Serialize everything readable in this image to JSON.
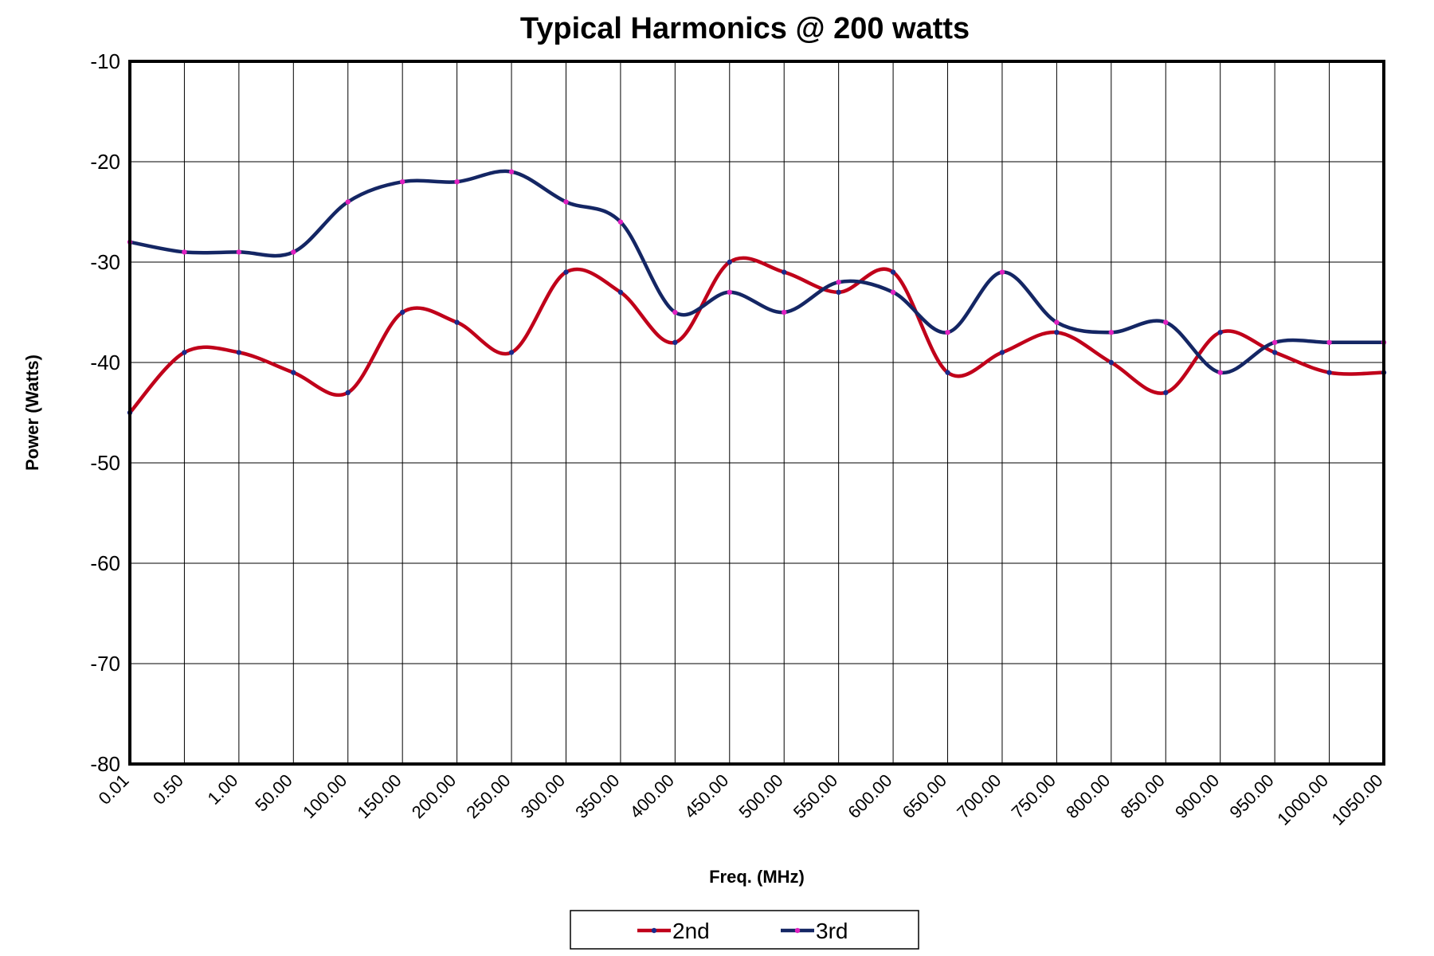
{
  "chart_data": {
    "type": "line",
    "title": "Typical Harmonics @ 200 watts",
    "xlabel": "Freq. (MHz)",
    "ylabel": "Power (Watts)",
    "categories": [
      "0.01",
      "0.50",
      "1.00",
      "50.00",
      "100.00",
      "150.00",
      "200.00",
      "250.00",
      "300.00",
      "350.00",
      "400.00",
      "450.00",
      "500.00",
      "550.00",
      "600.00",
      "650.00",
      "700.00",
      "750.00",
      "800.00",
      "850.00",
      "900.00",
      "950.00",
      "1000.00",
      "1050.00"
    ],
    "ylim": [
      -80,
      -10
    ],
    "yticks": [
      -10,
      -20,
      -30,
      -40,
      -50,
      -60,
      -70,
      -80
    ],
    "grid": true,
    "legend_position": "bottom-center",
    "series": [
      {
        "name": "2nd",
        "color": "#c0001a",
        "marker_color": "#1a2a8c",
        "values": [
          -45,
          -39,
          -39,
          -41,
          -43,
          -35,
          -36,
          -39,
          -31,
          -33,
          -38,
          -30,
          -31,
          -33,
          -31,
          -41,
          -39,
          -37,
          -40,
          -43,
          -37,
          -39,
          -41,
          -41
        ]
      },
      {
        "name": "3rd",
        "color": "#142664",
        "marker_color": "#e020c0",
        "values": [
          -28,
          -29,
          -29,
          -29,
          -24,
          -22,
          -22,
          -21,
          -24,
          -26,
          -35,
          -33,
          -35,
          -32,
          -33,
          -37,
          -31,
          -36,
          -37,
          -36,
          -41,
          -38,
          -38,
          -38
        ]
      }
    ]
  }
}
